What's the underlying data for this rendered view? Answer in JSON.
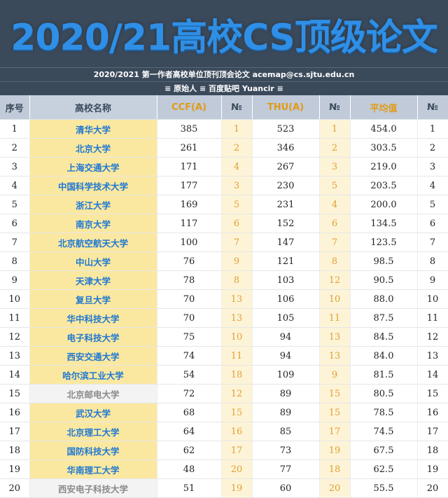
{
  "banner": {
    "title": "2020/21高校CS顶级论文",
    "subtitle_line1": "2020/2021 第一作者高校单位顶刊顶会论文 acemap@cs.sjtu.edu.cn",
    "subtitle_line2": "≡ 原始人 ≡ 百度贴吧 Yuancir ≡"
  },
  "colors": {
    "banner_bg": "#3b4a5b",
    "title_blue": "#2f8fe6",
    "school_highlight": "#fbe8a0",
    "school_gray": "#f3f3f3",
    "rank_bg": "#fdf4d8",
    "rank_text": "#e0a030",
    "school_text": "#1e78d2"
  },
  "table": {
    "headers": [
      "序号",
      "高校名称",
      "CCF(A)",
      "№",
      "THU(A)",
      "№",
      "平均值",
      "№"
    ],
    "rows": [
      {
        "seq": "1",
        "school": "清华大学",
        "ccf": "385",
        "ccf_rank": "1",
        "thu": "523",
        "thu_rank": "1",
        "avg": "454.0",
        "avg_rank": "1",
        "gray": false
      },
      {
        "seq": "2",
        "school": "北京大学",
        "ccf": "261",
        "ccf_rank": "2",
        "thu": "346",
        "thu_rank": "2",
        "avg": "303.5",
        "avg_rank": "2",
        "gray": false
      },
      {
        "seq": "3",
        "school": "上海交通大学",
        "ccf": "171",
        "ccf_rank": "4",
        "thu": "267",
        "thu_rank": "3",
        "avg": "219.0",
        "avg_rank": "3",
        "gray": false
      },
      {
        "seq": "4",
        "school": "中国科学技术大学",
        "ccf": "177",
        "ccf_rank": "3",
        "thu": "230",
        "thu_rank": "5",
        "avg": "203.5",
        "avg_rank": "4",
        "gray": false
      },
      {
        "seq": "5",
        "school": "浙江大学",
        "ccf": "169",
        "ccf_rank": "5",
        "thu": "231",
        "thu_rank": "4",
        "avg": "200.0",
        "avg_rank": "5",
        "gray": false
      },
      {
        "seq": "6",
        "school": "南京大学",
        "ccf": "117",
        "ccf_rank": "6",
        "thu": "152",
        "thu_rank": "6",
        "avg": "134.5",
        "avg_rank": "6",
        "gray": false
      },
      {
        "seq": "7",
        "school": "北京航空航天大学",
        "ccf": "100",
        "ccf_rank": "7",
        "thu": "147",
        "thu_rank": "7",
        "avg": "123.5",
        "avg_rank": "7",
        "gray": false
      },
      {
        "seq": "8",
        "school": "中山大学",
        "ccf": "76",
        "ccf_rank": "9",
        "thu": "121",
        "thu_rank": "8",
        "avg": "98.5",
        "avg_rank": "8",
        "gray": false
      },
      {
        "seq": "9",
        "school": "天津大学",
        "ccf": "78",
        "ccf_rank": "8",
        "thu": "103",
        "thu_rank": "12",
        "avg": "90.5",
        "avg_rank": "9",
        "gray": false
      },
      {
        "seq": "10",
        "school": "复旦大学",
        "ccf": "70",
        "ccf_rank": "13",
        "thu": "106",
        "thu_rank": "10",
        "avg": "88.0",
        "avg_rank": "10",
        "gray": false
      },
      {
        "seq": "11",
        "school": "华中科技大学",
        "ccf": "70",
        "ccf_rank": "13",
        "thu": "105",
        "thu_rank": "11",
        "avg": "87.5",
        "avg_rank": "11",
        "gray": false
      },
      {
        "seq": "12",
        "school": "电子科技大学",
        "ccf": "75",
        "ccf_rank": "10",
        "thu": "94",
        "thu_rank": "13",
        "avg": "84.5",
        "avg_rank": "12",
        "gray": false
      },
      {
        "seq": "13",
        "school": "西安交通大学",
        "ccf": "74",
        "ccf_rank": "11",
        "thu": "94",
        "thu_rank": "13",
        "avg": "84.0",
        "avg_rank": "13",
        "gray": false
      },
      {
        "seq": "14",
        "school": "哈尔滨工业大学",
        "ccf": "54",
        "ccf_rank": "18",
        "thu": "109",
        "thu_rank": "9",
        "avg": "81.5",
        "avg_rank": "14",
        "gray": false
      },
      {
        "seq": "15",
        "school": "北京邮电大学",
        "ccf": "72",
        "ccf_rank": "12",
        "thu": "89",
        "thu_rank": "15",
        "avg": "80.5",
        "avg_rank": "15",
        "gray": true
      },
      {
        "seq": "16",
        "school": "武汉大学",
        "ccf": "68",
        "ccf_rank": "15",
        "thu": "89",
        "thu_rank": "15",
        "avg": "78.5",
        "avg_rank": "16",
        "gray": false
      },
      {
        "seq": "17",
        "school": "北京理工大学",
        "ccf": "64",
        "ccf_rank": "16",
        "thu": "85",
        "thu_rank": "17",
        "avg": "74.5",
        "avg_rank": "17",
        "gray": false
      },
      {
        "seq": "18",
        "school": "国防科技大学",
        "ccf": "62",
        "ccf_rank": "17",
        "thu": "73",
        "thu_rank": "19",
        "avg": "67.5",
        "avg_rank": "18",
        "gray": false
      },
      {
        "seq": "19",
        "school": "华南理工大学",
        "ccf": "48",
        "ccf_rank": "20",
        "thu": "77",
        "thu_rank": "18",
        "avg": "62.5",
        "avg_rank": "19",
        "gray": false
      },
      {
        "seq": "20",
        "school": "西安电子科技大学",
        "ccf": "51",
        "ccf_rank": "19",
        "thu": "60",
        "thu_rank": "20",
        "avg": "55.5",
        "avg_rank": "20",
        "gray": true
      }
    ]
  }
}
